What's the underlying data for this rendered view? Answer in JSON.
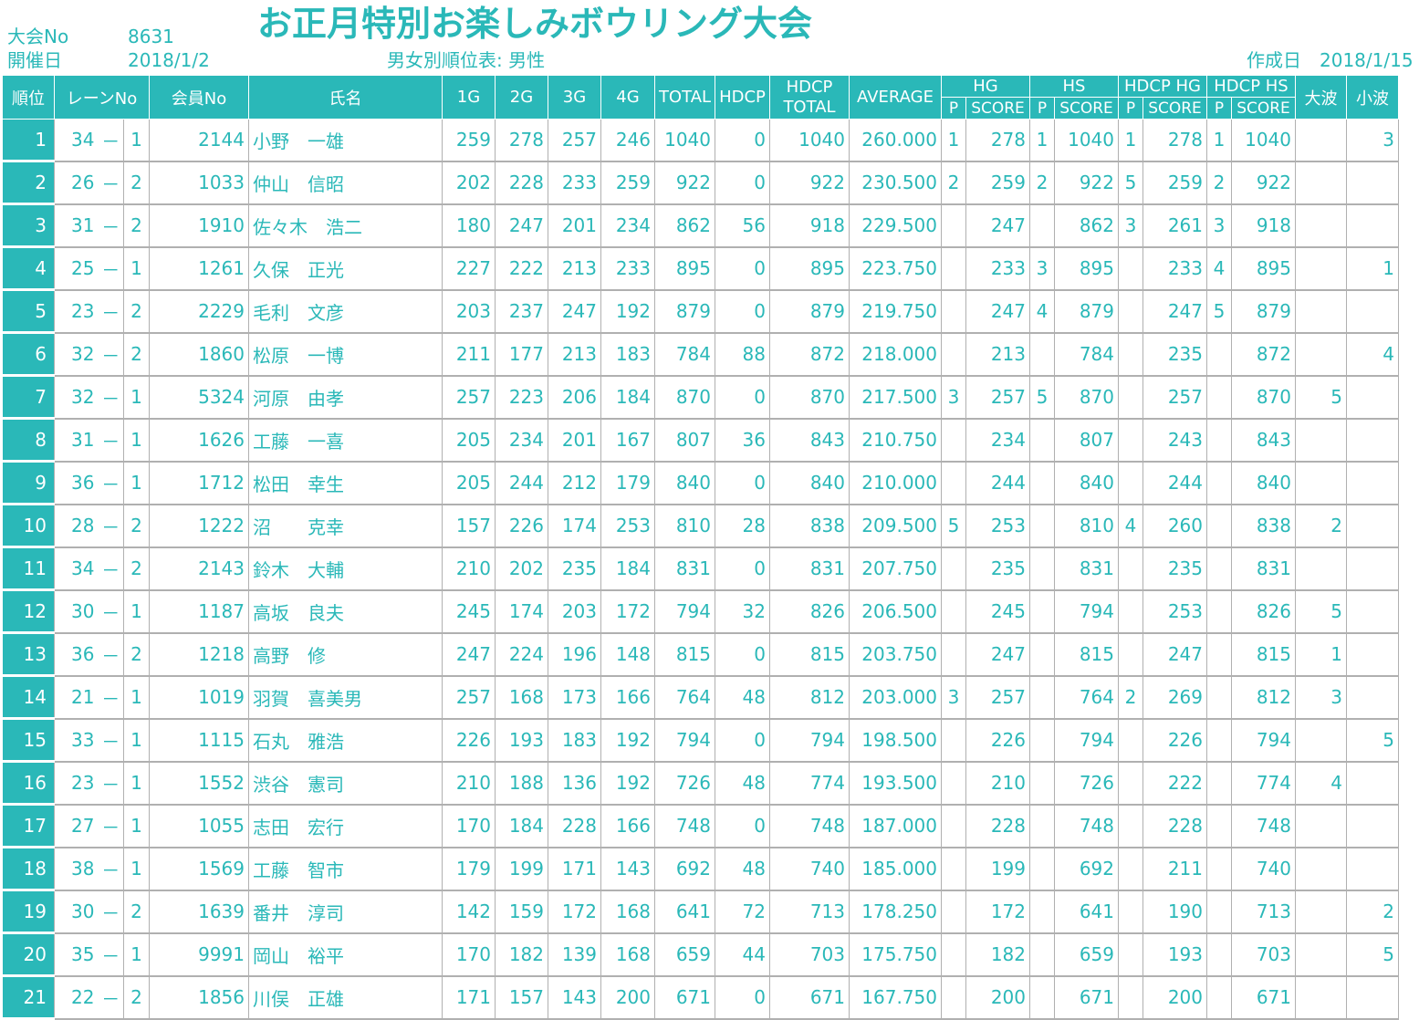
{
  "header": {
    "taikai_no_label": "大会No",
    "taikai_no_value": "8631",
    "date_label": "開催日",
    "date_value": "2018/1/2",
    "title": "お正月特別お楽しみボウリング大会",
    "subtitle": "男女別順位表: 男性",
    "created_label": "作成日",
    "created_value": "2018/1/15"
  },
  "columns": {
    "rank": "順位",
    "lane": "レーンNo",
    "member": "会員No",
    "name": "氏名",
    "g1": "1G",
    "g2": "2G",
    "g3": "3G",
    "g4": "4G",
    "total": "TOTAL",
    "hdcp": "HDCP",
    "hdcp_total_1": "HDCP",
    "hdcp_total_2": "TOTAL",
    "average": "AVERAGE",
    "hg": "HG",
    "hs": "HS",
    "hdcp_hg": "HDCP HG",
    "hdcp_hs": "HDCP HS",
    "onami": "大波",
    "konami": "小波",
    "p": "P",
    "score": "SCORE"
  },
  "rows": [
    [
      "1",
      "34",
      "－",
      "1",
      "2144",
      "小野　一雄",
      "259",
      "278",
      "257",
      "246",
      "1040",
      "0",
      "1040",
      "260.000",
      "1",
      "278",
      "1",
      "1040",
      "1",
      "278",
      "1",
      "1040",
      "",
      "3"
    ],
    [
      "2",
      "26",
      "－",
      "2",
      "1033",
      "仲山　信昭",
      "202",
      "228",
      "233",
      "259",
      "922",
      "0",
      "922",
      "230.500",
      "2",
      "259",
      "2",
      "922",
      "5",
      "259",
      "2",
      "922",
      "",
      ""
    ],
    [
      "3",
      "31",
      "－",
      "2",
      "1910",
      "佐々木　浩二",
      "180",
      "247",
      "201",
      "234",
      "862",
      "56",
      "918",
      "229.500",
      "",
      "247",
      "",
      "862",
      "3",
      "261",
      "3",
      "918",
      "",
      ""
    ],
    [
      "4",
      "25",
      "－",
      "1",
      "1261",
      "久保　正光",
      "227",
      "222",
      "213",
      "233",
      "895",
      "0",
      "895",
      "223.750",
      "",
      "233",
      "3",
      "895",
      "",
      "233",
      "4",
      "895",
      "",
      "1"
    ],
    [
      "5",
      "23",
      "－",
      "2",
      "2229",
      "毛利　文彦",
      "203",
      "237",
      "247",
      "192",
      "879",
      "0",
      "879",
      "219.750",
      "",
      "247",
      "4",
      "879",
      "",
      "247",
      "5",
      "879",
      "",
      ""
    ],
    [
      "6",
      "32",
      "－",
      "2",
      "1860",
      "松原　一博",
      "211",
      "177",
      "213",
      "183",
      "784",
      "88",
      "872",
      "218.000",
      "",
      "213",
      "",
      "784",
      "",
      "235",
      "",
      "872",
      "",
      "4"
    ],
    [
      "7",
      "32",
      "－",
      "1",
      "5324",
      "河原　由孝",
      "257",
      "223",
      "206",
      "184",
      "870",
      "0",
      "870",
      "217.500",
      "3",
      "257",
      "5",
      "870",
      "",
      "257",
      "",
      "870",
      "5",
      ""
    ],
    [
      "8",
      "31",
      "－",
      "1",
      "1626",
      "工藤　一喜",
      "205",
      "234",
      "201",
      "167",
      "807",
      "36",
      "843",
      "210.750",
      "",
      "234",
      "",
      "807",
      "",
      "243",
      "",
      "843",
      "",
      ""
    ],
    [
      "9",
      "36",
      "－",
      "1",
      "1712",
      "松田　幸生",
      "205",
      "244",
      "212",
      "179",
      "840",
      "0",
      "840",
      "210.000",
      "",
      "244",
      "",
      "840",
      "",
      "244",
      "",
      "840",
      "",
      ""
    ],
    [
      "10",
      "28",
      "－",
      "2",
      "1222",
      "沼　　克幸",
      "157",
      "226",
      "174",
      "253",
      "810",
      "28",
      "838",
      "209.500",
      "5",
      "253",
      "",
      "810",
      "4",
      "260",
      "",
      "838",
      "2",
      ""
    ],
    [
      "11",
      "34",
      "－",
      "2",
      "2143",
      "鈴木　大輔",
      "210",
      "202",
      "235",
      "184",
      "831",
      "0",
      "831",
      "207.750",
      "",
      "235",
      "",
      "831",
      "",
      "235",
      "",
      "831",
      "",
      ""
    ],
    [
      "12",
      "30",
      "－",
      "1",
      "1187",
      "高坂　良夫",
      "245",
      "174",
      "203",
      "172",
      "794",
      "32",
      "826",
      "206.500",
      "",
      "245",
      "",
      "794",
      "",
      "253",
      "",
      "826",
      "5",
      ""
    ],
    [
      "13",
      "36",
      "－",
      "2",
      "1218",
      "高野　修",
      "247",
      "224",
      "196",
      "148",
      "815",
      "0",
      "815",
      "203.750",
      "",
      "247",
      "",
      "815",
      "",
      "247",
      "",
      "815",
      "1",
      ""
    ],
    [
      "14",
      "21",
      "－",
      "1",
      "1019",
      "羽賀　喜美男",
      "257",
      "168",
      "173",
      "166",
      "764",
      "48",
      "812",
      "203.000",
      "3",
      "257",
      "",
      "764",
      "2",
      "269",
      "",
      "812",
      "3",
      ""
    ],
    [
      "15",
      "33",
      "－",
      "1",
      "1115",
      "石丸　雅浩",
      "226",
      "193",
      "183",
      "192",
      "794",
      "0",
      "794",
      "198.500",
      "",
      "226",
      "",
      "794",
      "",
      "226",
      "",
      "794",
      "",
      "5"
    ],
    [
      "16",
      "23",
      "－",
      "1",
      "1552",
      "渋谷　憲司",
      "210",
      "188",
      "136",
      "192",
      "726",
      "48",
      "774",
      "193.500",
      "",
      "210",
      "",
      "726",
      "",
      "222",
      "",
      "774",
      "4",
      ""
    ],
    [
      "17",
      "27",
      "－",
      "1",
      "1055",
      "志田　宏行",
      "170",
      "184",
      "228",
      "166",
      "748",
      "0",
      "748",
      "187.000",
      "",
      "228",
      "",
      "748",
      "",
      "228",
      "",
      "748",
      "",
      ""
    ],
    [
      "18",
      "38",
      "－",
      "1",
      "1569",
      "工藤　智市",
      "179",
      "199",
      "171",
      "143",
      "692",
      "48",
      "740",
      "185.000",
      "",
      "199",
      "",
      "692",
      "",
      "211",
      "",
      "740",
      "",
      ""
    ],
    [
      "19",
      "30",
      "－",
      "2",
      "1639",
      "番井　淳司",
      "142",
      "159",
      "172",
      "168",
      "641",
      "72",
      "713",
      "178.250",
      "",
      "172",
      "",
      "641",
      "",
      "190",
      "",
      "713",
      "",
      "2"
    ],
    [
      "20",
      "35",
      "－",
      "1",
      "9991",
      "岡山　裕平",
      "170",
      "182",
      "139",
      "168",
      "659",
      "44",
      "703",
      "175.750",
      "",
      "182",
      "",
      "659",
      "",
      "193",
      "",
      "703",
      "",
      "5"
    ],
    [
      "21",
      "22",
      "－",
      "2",
      "1856",
      "川俣　正雄",
      "171",
      "157",
      "143",
      "200",
      "671",
      "0",
      "671",
      "167.750",
      "",
      "200",
      "",
      "671",
      "",
      "200",
      "",
      "671",
      "",
      ""
    ]
  ]
}
